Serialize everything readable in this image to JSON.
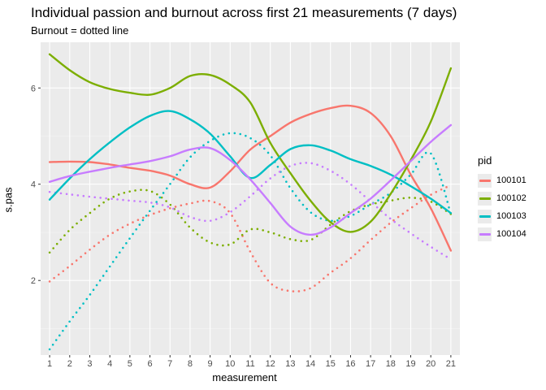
{
  "title": "Individual passion and burnout across first 21 measurements (7 days)",
  "subtitle": "Burnout = dotted line",
  "chart_data": {
    "type": "line",
    "xlabel": "measurement",
    "ylabel": "s.pas",
    "x": [
      1,
      2,
      3,
      4,
      5,
      6,
      7,
      8,
      9,
      10,
      11,
      12,
      13,
      14,
      15,
      16,
      17,
      18,
      19,
      20,
      21
    ],
    "xlim": [
      0.55,
      21.45
    ],
    "ylim": [
      0.45,
      6.95
    ],
    "yticks": [
      2,
      4,
      6
    ],
    "grid": true,
    "legend_title": "pid",
    "legend_position": "right",
    "series": [
      {
        "name": "100101",
        "color": "#F8766D",
        "passion": [
          4.46,
          4.47,
          4.46,
          4.41,
          4.34,
          4.28,
          4.18,
          4.0,
          3.93,
          4.27,
          4.72,
          5.0,
          5.28,
          5.46,
          5.58,
          5.63,
          5.48,
          5.0,
          4.2,
          3.5,
          2.62
        ],
        "burnout": [
          1.98,
          2.3,
          2.64,
          2.95,
          3.18,
          3.36,
          3.5,
          3.6,
          3.65,
          3.4,
          2.6,
          1.95,
          1.78,
          1.84,
          2.16,
          2.46,
          2.84,
          3.2,
          3.5,
          3.78,
          3.98
        ]
      },
      {
        "name": "100102",
        "color": "#7CAE00",
        "passion": [
          6.7,
          6.37,
          6.12,
          5.98,
          5.9,
          5.86,
          6.0,
          6.25,
          6.27,
          6.07,
          5.7,
          4.86,
          4.23,
          3.66,
          3.21,
          3.01,
          3.22,
          3.8,
          4.5,
          5.3,
          6.41
        ],
        "burnout": [
          2.58,
          3.05,
          3.4,
          3.7,
          3.85,
          3.86,
          3.58,
          3.1,
          2.79,
          2.75,
          3.06,
          3.0,
          2.86,
          2.84,
          3.16,
          3.44,
          3.58,
          3.66,
          3.72,
          3.64,
          3.38
        ]
      },
      {
        "name": "100103",
        "color": "#00BFC4",
        "passion": [
          3.68,
          4.12,
          4.52,
          4.87,
          5.18,
          5.42,
          5.52,
          5.35,
          5.05,
          4.58,
          4.13,
          4.4,
          4.73,
          4.81,
          4.7,
          4.52,
          4.38,
          4.2,
          3.96,
          3.7,
          3.4
        ],
        "burnout": [
          0.57,
          1.15,
          1.7,
          2.29,
          2.88,
          3.45,
          4.0,
          4.56,
          4.9,
          5.06,
          4.96,
          4.6,
          3.92,
          3.42,
          3.24,
          3.34,
          3.58,
          3.82,
          4.2,
          4.64,
          3.38
        ]
      },
      {
        "name": "100104",
        "color": "#C77CFF",
        "passion": [
          4.05,
          4.17,
          4.26,
          4.34,
          4.41,
          4.48,
          4.58,
          4.72,
          4.75,
          4.5,
          4.1,
          3.61,
          3.12,
          2.95,
          3.1,
          3.4,
          3.7,
          4.08,
          4.48,
          4.88,
          5.23
        ],
        "burnout": [
          3.84,
          3.79,
          3.74,
          3.7,
          3.66,
          3.62,
          3.52,
          3.32,
          3.24,
          3.42,
          3.75,
          4.12,
          4.38,
          4.44,
          4.28,
          4.0,
          3.64,
          3.28,
          2.98,
          2.7,
          2.44
        ]
      }
    ]
  }
}
